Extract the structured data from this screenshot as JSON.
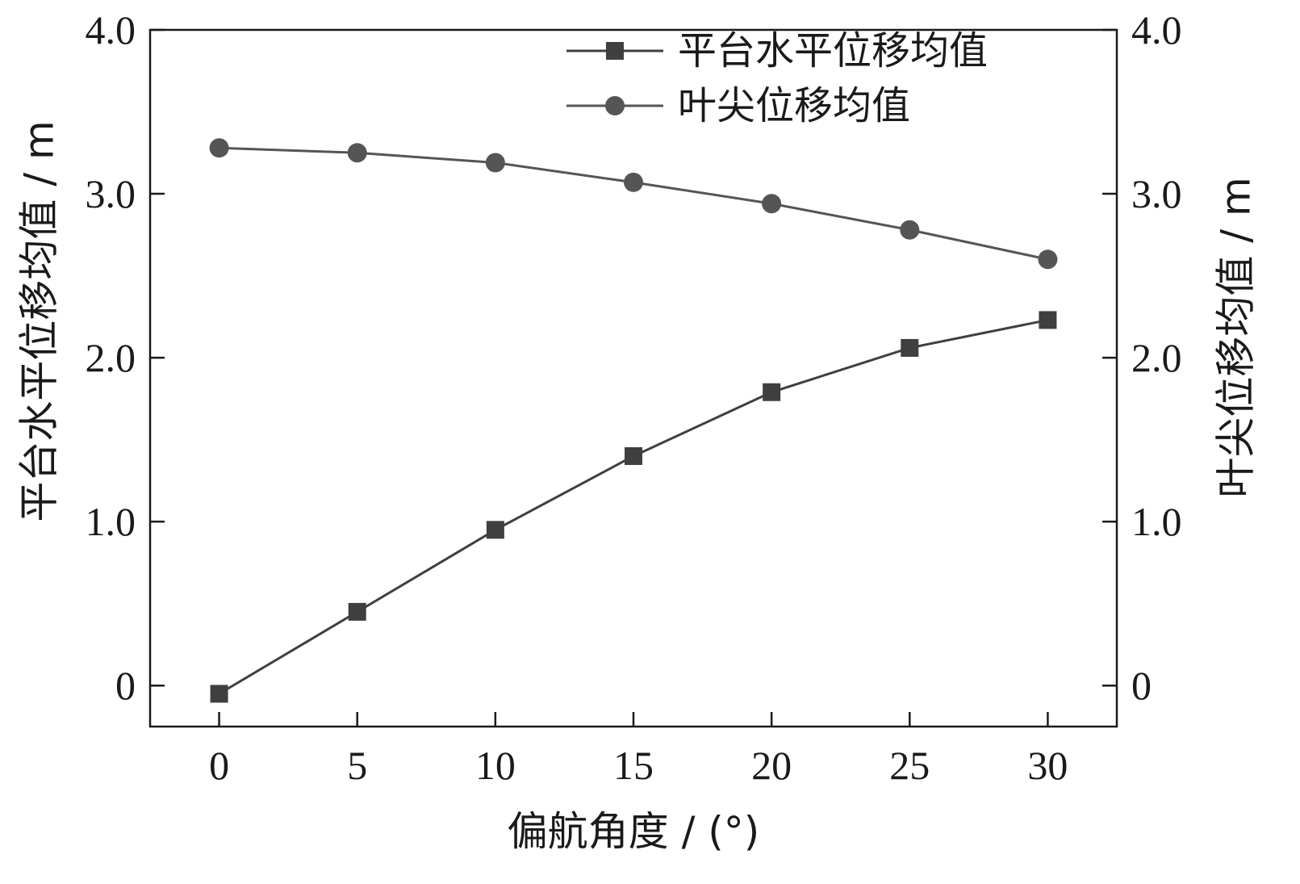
{
  "chart_data": {
    "type": "line",
    "x": [
      0,
      5,
      10,
      15,
      20,
      25,
      30
    ],
    "xlim": [
      -2.5,
      32.5
    ],
    "xticks": [
      0,
      5,
      10,
      15,
      20,
      25,
      30
    ],
    "ylim": [
      -0.25,
      4.0
    ],
    "yticks": [
      0,
      1.0,
      2.0,
      3.0,
      4.0
    ],
    "ytick_labels": [
      "0",
      "1.0",
      "2.0",
      "3.0",
      "4.0"
    ],
    "xlabel": "偏航角度 / (°)",
    "ylabel_left": "平台水平位移均值 / m",
    "ylabel_right": "叶尖位移均值 / m",
    "grid": false,
    "legend_position": "top-right",
    "series": [
      {
        "name": "平台水平位移均值",
        "marker": "square",
        "color": "#3f3f3f",
        "values": [
          -0.05,
          0.45,
          0.95,
          1.4,
          1.79,
          2.06,
          2.23
        ]
      },
      {
        "name": "叶尖位移均值",
        "marker": "circle",
        "color": "#555555",
        "values": [
          3.28,
          3.25,
          3.19,
          3.07,
          2.94,
          2.78,
          2.6
        ]
      }
    ]
  }
}
